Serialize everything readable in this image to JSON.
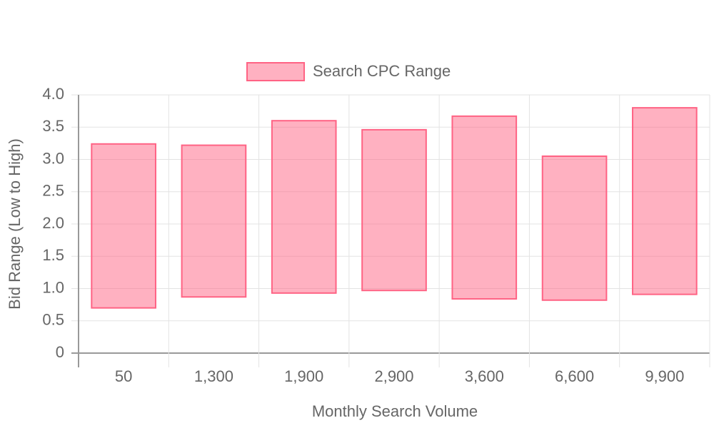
{
  "chart_data": {
    "type": "bar",
    "x_label": "Monthly Search Volume",
    "y_label": "Bid Range (Low to High)",
    "categories": [
      "50",
      "1,300",
      "1,900",
      "2,900",
      "3,600",
      "6,600",
      "9,900"
    ],
    "series": [
      {
        "name": "Search CPC Range",
        "color": "#ff6384",
        "values": [
          [
            0.7,
            3.24
          ],
          [
            0.87,
            3.22
          ],
          [
            0.93,
            3.6
          ],
          [
            0.97,
            3.46
          ],
          [
            0.84,
            3.67
          ],
          [
            0.82,
            3.05
          ],
          [
            0.91,
            3.8
          ]
        ]
      }
    ],
    "ylim": [
      0,
      4
    ],
    "yticks": [
      0,
      0.5,
      {
        "value": 1,
        "label": "1.0"
      },
      1.5,
      {
        "value": 2,
        "label": "2.0"
      },
      2.5,
      {
        "value": 3,
        "label": "3.0"
      },
      3.5,
      {
        "value": 4,
        "label": "4.0"
      }
    ],
    "grid": true,
    "legend": "top"
  }
}
